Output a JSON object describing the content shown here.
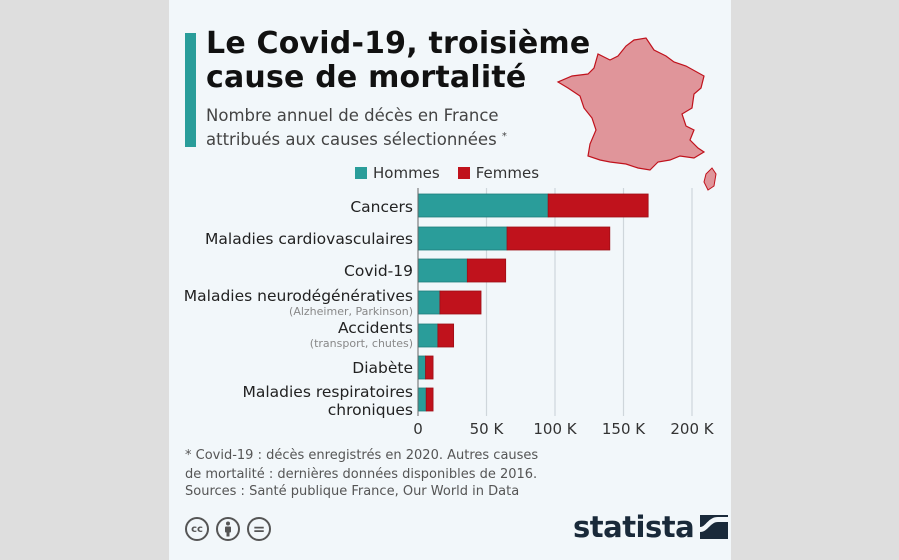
{
  "header": {
    "title_line1": "Le Covid-19, troisième",
    "title_line2": "cause de mortalité",
    "subtitle_line1": "Nombre annuel de décès en France",
    "subtitle_line2": "attribués aux causes sélectionnées",
    "subtitle_mark": "*"
  },
  "colors": {
    "accent": "#2a9d9a",
    "hommes": "#2a9d9a",
    "femmes": "#c0121c",
    "map_fill": "#e0959a",
    "map_stroke": "#c0121c"
  },
  "chart_data": {
    "type": "bar",
    "orientation": "horizontal",
    "stacked": true,
    "categories": [
      "Cancers",
      "Maladies cardiovasculaires",
      "Covid-19",
      "Maladies neurodégénératives",
      "Accidents",
      "Diabète",
      "Maladies respiratoires chroniques"
    ],
    "category_labels": [
      {
        "main": "Cancers",
        "sub": ""
      },
      {
        "main": "Maladies cardiovasculaires",
        "sub": ""
      },
      {
        "main": "Covid-19",
        "sub": ""
      },
      {
        "main": "Maladies neurodégénératives",
        "sub": "(Alzheimer, Parkinson)"
      },
      {
        "main": "Accidents",
        "sub": "(transport, chutes)"
      },
      {
        "main": "Diabète",
        "sub": ""
      },
      {
        "main": "Maladies respiratoires",
        "sub": "chroniques"
      }
    ],
    "series": [
      {
        "name": "Hommes",
        "values": [
          95000,
          65000,
          36000,
          16000,
          14500,
          5500,
          6000
        ]
      },
      {
        "name": "Femmes",
        "values": [
          73000,
          75000,
          28000,
          30000,
          11500,
          5500,
          5000
        ]
      }
    ],
    "xlim": [
      0,
      200000
    ],
    "xticks": [
      0,
      50000,
      100000,
      150000,
      200000
    ],
    "xtick_labels": [
      "0",
      "50 K",
      "100 K",
      "150 K",
      "200 K"
    ],
    "grid": true,
    "legend_position": "top"
  },
  "footer": {
    "note_line1": "* Covid-19 : décès enregistrés en 2020. Autres causes",
    "note_line2": "de mortalité : dernières données disponibles de 2016.",
    "source": "Sources : Santé publique France, Our World in Data",
    "license_icons": [
      "cc-icon",
      "by-icon",
      "nd-icon"
    ],
    "cc_label": "cc",
    "nd_label": "=",
    "brand": "statista"
  }
}
